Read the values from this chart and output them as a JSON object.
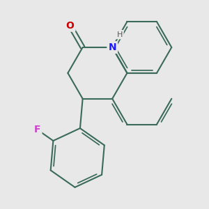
{
  "background_color": "#e8e8e8",
  "bond_color": "#3a6a5a",
  "bond_width": 1.5,
  "atom_labels": {
    "N": {
      "color": "#1a1aff",
      "fontsize": 10,
      "fontweight": "bold"
    },
    "O": {
      "color": "#cc0000",
      "fontsize": 10,
      "fontweight": "bold"
    },
    "H": {
      "color": "#555555",
      "fontsize": 8,
      "fontweight": "normal"
    },
    "F": {
      "color": "#cc44cc",
      "fontsize": 10,
      "fontweight": "bold"
    }
  },
  "figsize": [
    3.0,
    3.0
  ],
  "dpi": 100
}
